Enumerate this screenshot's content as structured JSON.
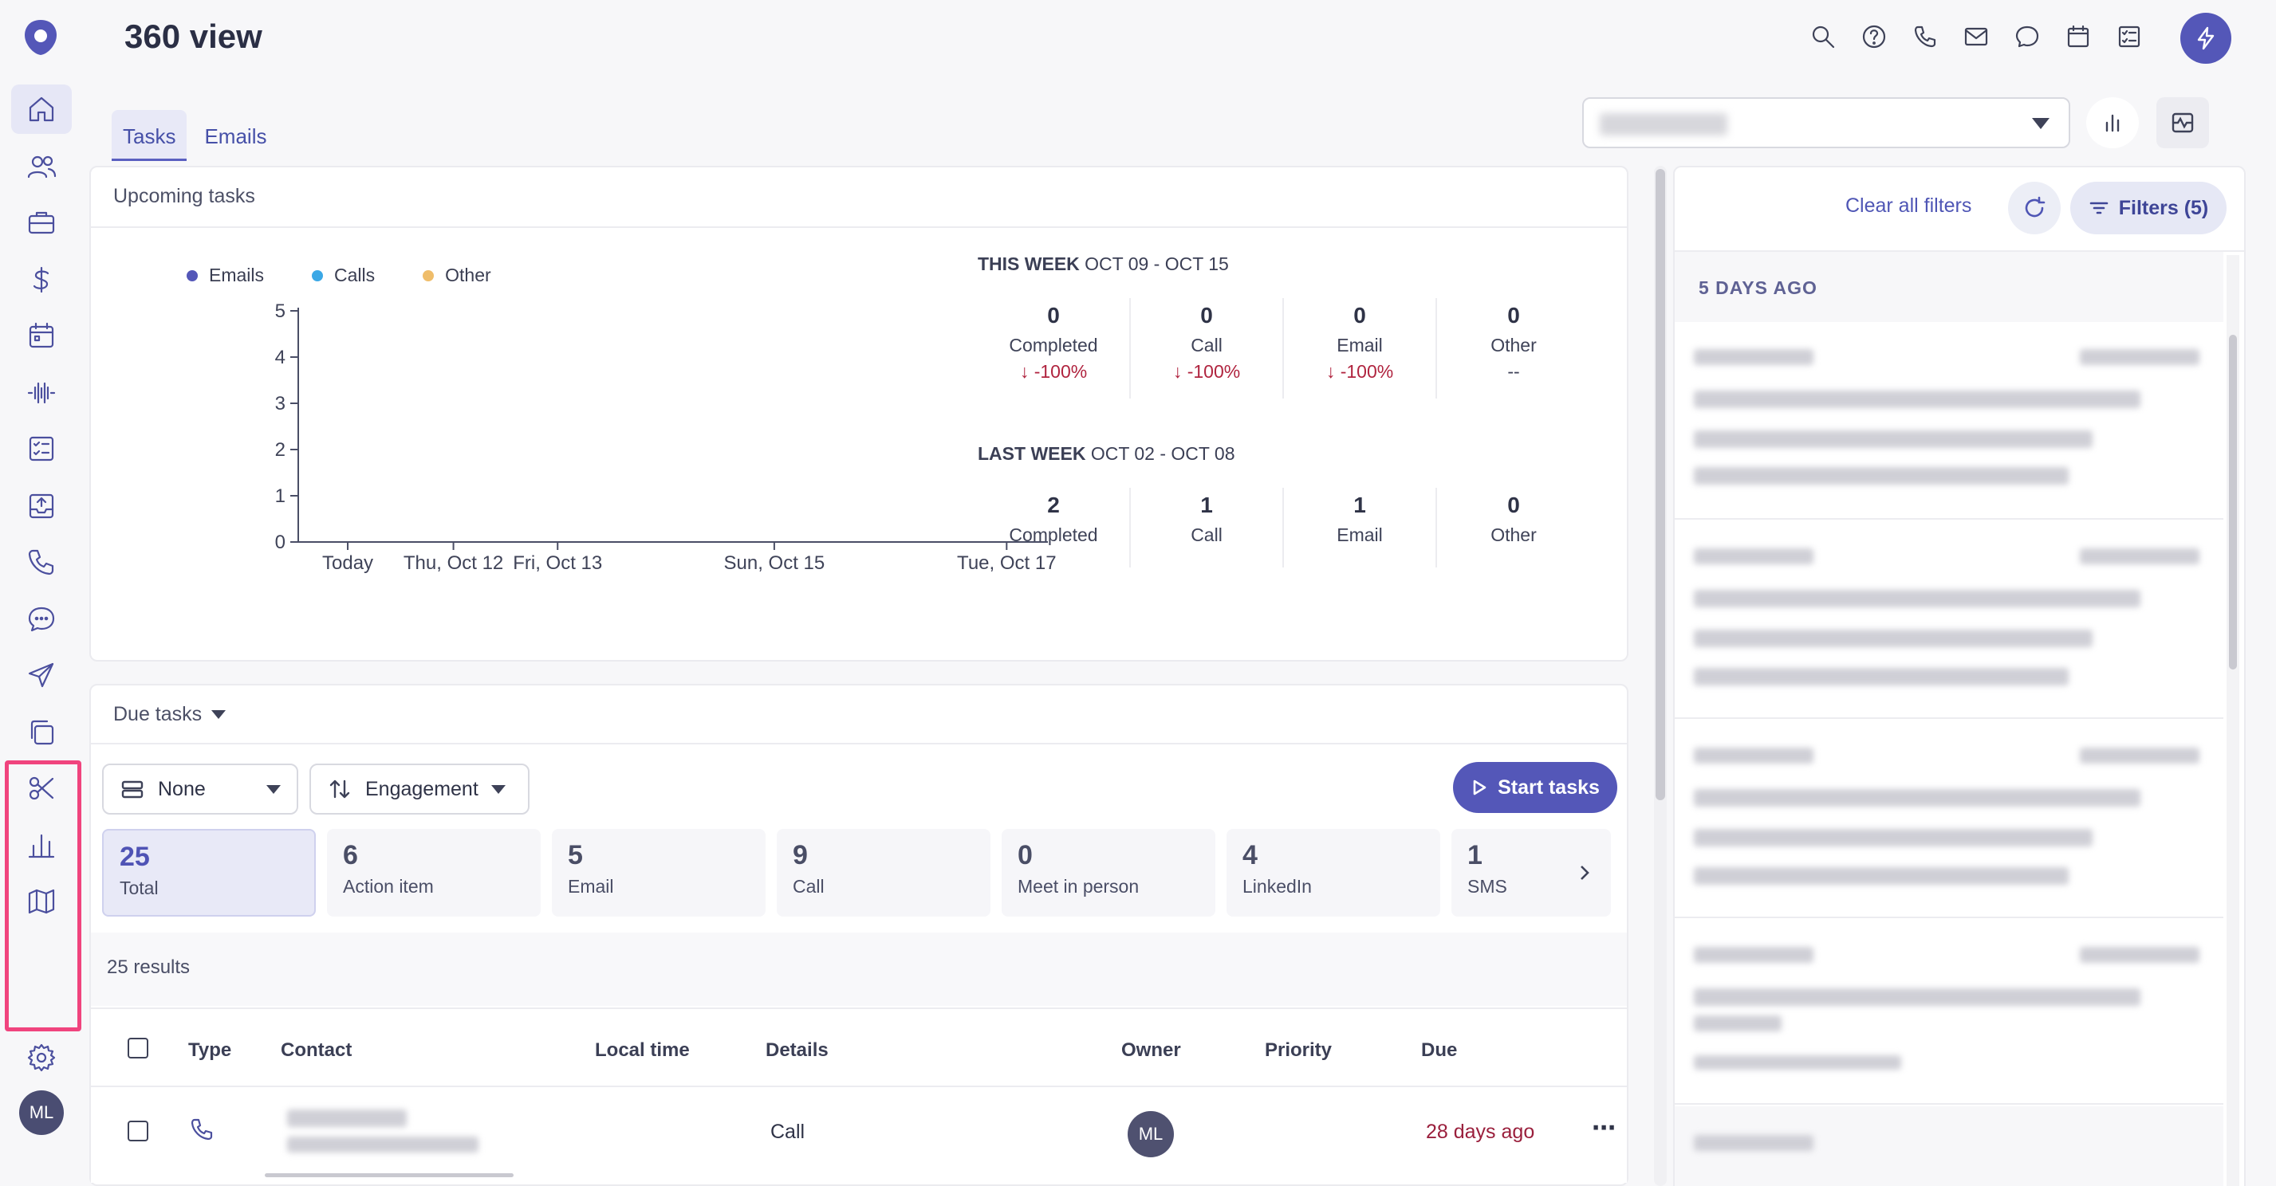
{
  "header": {
    "title": "360 view"
  },
  "tabs": [
    {
      "label": "Tasks"
    },
    {
      "label": "Emails"
    }
  ],
  "upcoming": {
    "title": "Upcoming tasks",
    "legend": [
      {
        "label": "Emails",
        "color": "#5457b8"
      },
      {
        "label": "Calls",
        "color": "#3ba8e6"
      },
      {
        "label": "Other",
        "color": "#efbd6a"
      }
    ],
    "this_week": {
      "prefix": "THIS WEEK",
      "range": "OCT 09 - OCT 15",
      "stats": [
        {
          "value": "0",
          "label": "Completed",
          "change": "-100%"
        },
        {
          "value": "0",
          "label": "Call",
          "change": "-100%"
        },
        {
          "value": "0",
          "label": "Email",
          "change": "-100%"
        },
        {
          "value": "0",
          "label": "Other",
          "change": "--"
        }
      ]
    },
    "last_week": {
      "prefix": "LAST WEEK",
      "range": "OCT 02 - OCT 08",
      "stats": [
        {
          "value": "2",
          "label": "Completed"
        },
        {
          "value": "1",
          "label": "Call"
        },
        {
          "value": "1",
          "label": "Email"
        },
        {
          "value": "0",
          "label": "Other"
        }
      ]
    }
  },
  "chart_data": {
    "type": "line",
    "x": [
      "Today",
      "Thu, Oct 12",
      "Fri, Oct 13",
      "Sun, Oct 15",
      "Tue, Oct 17"
    ],
    "series": [
      {
        "name": "Emails",
        "values": [
          0,
          0,
          0,
          0,
          0
        ]
      },
      {
        "name": "Calls",
        "values": [
          0,
          0,
          0,
          0,
          0
        ]
      },
      {
        "name": "Other",
        "values": [
          0,
          0,
          0,
          0,
          0
        ]
      }
    ],
    "yticks": [
      "0",
      "1",
      "2",
      "3",
      "4",
      "5"
    ],
    "ylim": [
      0,
      5
    ],
    "legend": "top-left"
  },
  "due": {
    "title": "Due tasks",
    "group_by": "None",
    "sort_by": "Engagement",
    "start_label": "Start tasks",
    "counts": [
      {
        "n": "25",
        "label": "Total"
      },
      {
        "n": "6",
        "label": "Action item"
      },
      {
        "n": "5",
        "label": "Email"
      },
      {
        "n": "9",
        "label": "Call"
      },
      {
        "n": "0",
        "label": "Meet in person"
      },
      {
        "n": "4",
        "label": "LinkedIn"
      },
      {
        "n": "1",
        "label": "SMS"
      }
    ],
    "results": "25 results",
    "columns": {
      "type": "Type",
      "contact": "Contact",
      "local_time": "Local time",
      "details": "Details",
      "owner": "Owner",
      "priority": "Priority",
      "due": "Due"
    },
    "rows": [
      {
        "details": "Call",
        "owner": "ML",
        "due": "28 days ago"
      }
    ]
  },
  "right_panel": {
    "clear_filters": "Clear all filters",
    "filters": "Filters (5)",
    "group": "5 DAYS AGO"
  },
  "user": {
    "initials": "ML"
  },
  "colors": {
    "accent": "#5457b8",
    "highlight": "#f0447e",
    "negative": "#b0243f"
  }
}
